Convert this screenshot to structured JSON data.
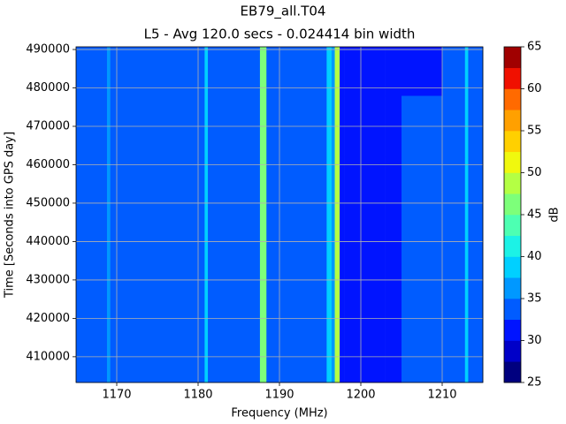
{
  "chart_data": {
    "type": "heatmap",
    "title": "EB79_all.T04",
    "subtitle": "L5 - Avg 120.0 secs - 0.024414 bin width",
    "xlabel": "Frequency (MHz)",
    "ylabel": "Time [Seconds into GPS day]",
    "colorbar_label": "dB",
    "xlim": [
      1165,
      1215
    ],
    "xticks": [
      1170,
      1180,
      1190,
      1200,
      1210
    ],
    "ylim": [
      403300,
      490700
    ],
    "yticks": [
      410000,
      420000,
      430000,
      440000,
      450000,
      460000,
      470000,
      480000,
      490000
    ],
    "grid": true,
    "x": [
      1165,
      1168.8,
      1169.2,
      1180.8,
      1181.2,
      1187.6,
      1188.4,
      1195.8,
      1196.4,
      1196.8,
      1197.4,
      1198,
      1203,
      1205,
      1210,
      1212.8,
      1213.2,
      1215
    ],
    "y": [
      403300,
      462000,
      478000,
      490700
    ],
    "z": [
      [
        33,
        37,
        33,
        38,
        33,
        47,
        33,
        38,
        36,
        48,
        31,
        30,
        31,
        33,
        33,
        39,
        33
      ],
      [
        33,
        37,
        33,
        38,
        33,
        47,
        33,
        38,
        36,
        48,
        31,
        31,
        32,
        33,
        33,
        39,
        33
      ],
      [
        33,
        37,
        33,
        38,
        33,
        47,
        33,
        38,
        36,
        48,
        31,
        30,
        30,
        31,
        33,
        39,
        33
      ]
    ],
    "levels": [
      25,
      27.5,
      30,
      32.5,
      35,
      37.5,
      40,
      42.5,
      45,
      47.5,
      50,
      52.5,
      55,
      57.5,
      60,
      62.5,
      65
    ],
    "colors": [
      "#00007f",
      "#0000c8",
      "#0014ff",
      "#005cff",
      "#0098ff",
      "#00d0ff",
      "#1cf2e6",
      "#4dffb2",
      "#7dff7a",
      "#b4ff44",
      "#f0f80e",
      "#ffd000",
      "#ffa000",
      "#ff6a00",
      "#f01000",
      "#a00000"
    ],
    "cticks": [
      25,
      30,
      35,
      40,
      45,
      50,
      55,
      60,
      65
    ]
  }
}
